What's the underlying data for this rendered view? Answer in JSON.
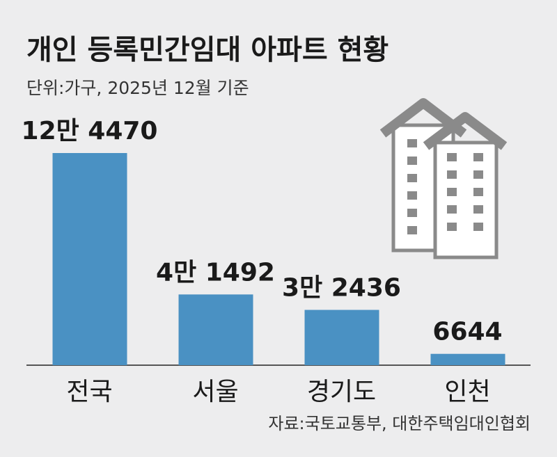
{
  "chart_data": {
    "type": "bar",
    "title": "개인 등록민간임대 아파트 현황",
    "subtitle": "단위:가구, 2025년 12월 기준",
    "categories": [
      "전국",
      "서울",
      "경기도",
      "인천"
    ],
    "values": [
      124470,
      41492,
      32436,
      6644
    ],
    "value_labels": [
      "12만 4470",
      "4만 1492",
      "3만 2436",
      "6644"
    ],
    "color": "#4a91c3",
    "source": "자료:국토교통부, 대한주택임대인협회"
  }
}
